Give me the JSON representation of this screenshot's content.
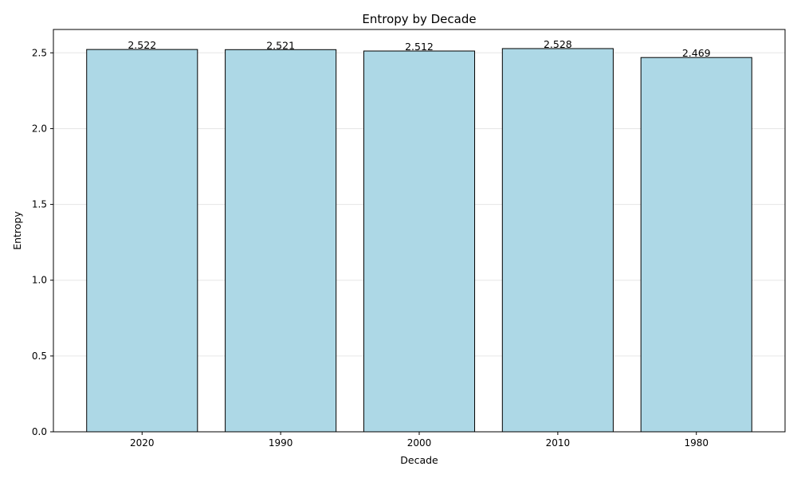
{
  "chart_data": {
    "type": "bar",
    "title": "Entropy by Decade",
    "xlabel": "Decade",
    "ylabel": "Entropy",
    "categories": [
      "2020",
      "1990",
      "2000",
      "2010",
      "1980"
    ],
    "values": [
      2.522,
      2.521,
      2.512,
      2.528,
      2.469
    ],
    "value_labels": [
      "2.522",
      "2.521",
      "2.512",
      "2.528",
      "2.469"
    ],
    "ylim": [
      0,
      2.654
    ],
    "yticks": [
      0.0,
      0.5,
      1.0,
      1.5,
      2.0,
      2.5
    ],
    "ytick_labels": [
      "0.0",
      "0.5",
      "1.0",
      "1.5",
      "2.0",
      "2.5"
    ],
    "grid": "horizontal",
    "bar_color": "#add8e6",
    "bar_edge_color": "#000000"
  }
}
